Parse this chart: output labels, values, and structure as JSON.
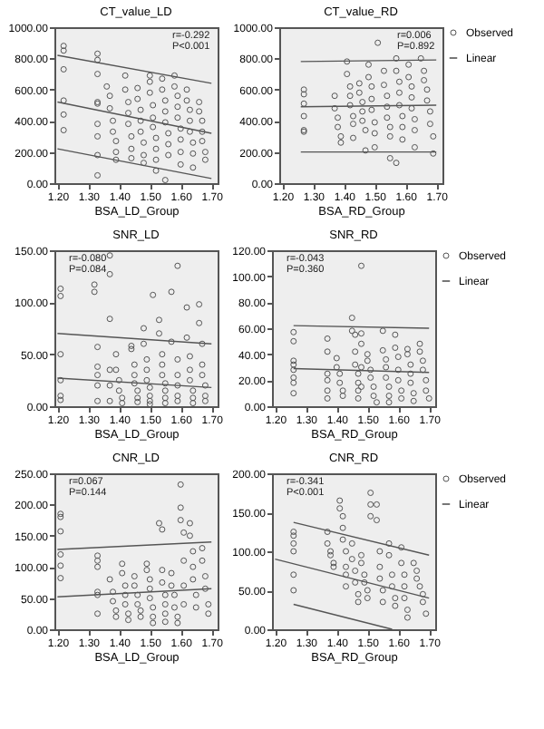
{
  "chart_data": [
    {
      "type": "scatter",
      "title": "CT_value_LD",
      "xlabel": "BSA_LD_Group",
      "legend": false,
      "annotations": [
        "r=-0.292",
        "P<0.001"
      ],
      "xlim": [
        1.19,
        1.72
      ],
      "xticks": [
        {
          "value": 1.2,
          "label": "1.20"
        },
        {
          "value": 1.3,
          "label": "1.30"
        },
        {
          "value": 1.4,
          "label": "1.40"
        },
        {
          "value": 1.5,
          "label": "1.50"
        },
        {
          "value": 1.6,
          "label": "1.60"
        },
        {
          "value": 1.7,
          "label": "1.70"
        }
      ],
      "ylim": [
        0,
        1000
      ],
      "yticks": [
        {
          "value": 0,
          "label": "0.00"
        },
        {
          "value": 200,
          "label": "200.00"
        },
        {
          "value": 400,
          "label": "400.00"
        },
        {
          "value": 600,
          "label": "600.00"
        },
        {
          "value": 800,
          "label": "800.00"
        },
        {
          "value": 1000,
          "label": "1000.00"
        }
      ],
      "series": [
        {
          "marker": "circle",
          "color": "#555555",
          "x": [
            1.22,
            1.22,
            1.22,
            1.22,
            1.22,
            1.22,
            1.33,
            1.33,
            1.33,
            1.33,
            1.33,
            1.33,
            1.33,
            1.33,
            1.33,
            1.36,
            1.37,
            1.37,
            1.38,
            1.38,
            1.39,
            1.39,
            1.39,
            1.42,
            1.42,
            1.43,
            1.43,
            1.43,
            1.44,
            1.44,
            1.44,
            1.46,
            1.46,
            1.47,
            1.47,
            1.47,
            1.48,
            1.48,
            1.48,
            1.5,
            1.5,
            1.5,
            1.51,
            1.51,
            1.51,
            1.52,
            1.52,
            1.52,
            1.52,
            1.54,
            1.54,
            1.55,
            1.55,
            1.55,
            1.56,
            1.56,
            1.56,
            1.55,
            1.58,
            1.58,
            1.59,
            1.59,
            1.59,
            1.6,
            1.6,
            1.6,
            1.6,
            1.62,
            1.62,
            1.63,
            1.63,
            1.63,
            1.64,
            1.64,
            1.64,
            1.66,
            1.66,
            1.67,
            1.67,
            1.67,
            1.68,
            1.68
          ],
          "values": [
            880,
            850,
            730,
            530,
            440,
            340,
            830,
            790,
            700,
            520,
            510,
            380,
            300,
            180,
            50,
            620,
            560,
            480,
            400,
            330,
            270,
            200,
            150,
            690,
            600,
            520,
            450,
            380,
            300,
            220,
            160,
            610,
            540,
            470,
            400,
            330,
            260,
            180,
            130,
            690,
            650,
            580,
            500,
            420,
            360,
            290,
            220,
            150,
            80,
            670,
            600,
            530,
            460,
            390,
            320,
            250,
            180,
            20,
            690,
            620,
            560,
            490,
            420,
            350,
            280,
            200,
            120,
            600,
            530,
            470,
            400,
            330,
            260,
            190,
            100,
            520,
            460,
            400,
            330,
            270,
            200,
            150
          ]
        },
        {
          "type": "line",
          "color": "#555555",
          "x": [
            1.2,
            1.7
          ],
          "values": [
            520,
            320
          ]
        },
        {
          "type": "line",
          "color": "#555555",
          "x": [
            1.2,
            1.7
          ],
          "values": [
            820,
            640
          ]
        },
        {
          "type": "line",
          "color": "#555555",
          "x": [
            1.2,
            1.7
          ],
          "values": [
            220,
            30
          ]
        }
      ]
    },
    {
      "type": "scatter",
      "title": "CT_value_RD",
      "xlabel": "BSA_RD_Group",
      "legend": "top right",
      "annotations": [
        "r=0.006",
        "P=0.892"
      ],
      "xlim": [
        1.19,
        1.72
      ],
      "xticks": [
        {
          "value": 1.2,
          "label": "1.20"
        },
        {
          "value": 1.3,
          "label": "1.30"
        },
        {
          "value": 1.4,
          "label": "1.40"
        },
        {
          "value": 1.5,
          "label": "1.50"
        },
        {
          "value": 1.6,
          "label": "1.60"
        },
        {
          "value": 1.7,
          "label": "1.70"
        }
      ],
      "ylim": [
        0,
        1000
      ],
      "yticks": [
        {
          "value": 0,
          "label": "0.00"
        },
        {
          "value": 200,
          "label": "200.00"
        },
        {
          "value": 400,
          "label": "400.00"
        },
        {
          "value": 600,
          "label": "600.00"
        },
        {
          "value": 800,
          "label": "800.00"
        },
        {
          "value": 1000,
          "label": "1000.00"
        }
      ],
      "series": [
        {
          "marker": "circle",
          "name": "Observed",
          "color": "#555555",
          "x": [
            1.27,
            1.27,
            1.27,
            1.27,
            1.27,
            1.27,
            1.37,
            1.37,
            1.38,
            1.38,
            1.39,
            1.39,
            1.41,
            1.41,
            1.42,
            1.42,
            1.42,
            1.43,
            1.43,
            1.43,
            1.45,
            1.45,
            1.46,
            1.46,
            1.46,
            1.47,
            1.47,
            1.48,
            1.48,
            1.49,
            1.49,
            1.49,
            1.5,
            1.5,
            1.5,
            1.51,
            1.53,
            1.53,
            1.54,
            1.54,
            1.54,
            1.55,
            1.55,
            1.55,
            1.57,
            1.57,
            1.58,
            1.58,
            1.58,
            1.59,
            1.59,
            1.59,
            1.57,
            1.61,
            1.61,
            1.62,
            1.62,
            1.62,
            1.63,
            1.63,
            1.63,
            1.65,
            1.66,
            1.66,
            1.67,
            1.67,
            1.68,
            1.68,
            1.69,
            1.69
          ],
          "values": [
            600,
            570,
            510,
            430,
            340,
            330,
            560,
            480,
            420,
            360,
            300,
            260,
            780,
            700,
            620,
            560,
            500,
            430,
            380,
            290,
            640,
            580,
            520,
            460,
            400,
            340,
            210,
            760,
            680,
            620,
            540,
            470,
            390,
            320,
            230,
            900,
            720,
            630,
            560,
            490,
            420,
            360,
            300,
            160,
            800,
            720,
            650,
            580,
            500,
            430,
            360,
            280,
            130,
            760,
            680,
            620,
            550,
            480,
            410,
            340,
            230,
            800,
            720,
            660,
            600,
            530,
            460,
            380,
            300,
            190
          ]
        },
        {
          "type": "line",
          "name": "Linear",
          "color": "#555555",
          "x": [
            1.26,
            1.7
          ],
          "values": [
            490,
            500
          ]
        },
        {
          "type": "line",
          "color": "#555555",
          "x": [
            1.26,
            1.7
          ],
          "values": [
            780,
            790
          ]
        },
        {
          "type": "line",
          "color": "#555555",
          "x": [
            1.26,
            1.7
          ],
          "values": [
            200,
            200
          ]
        }
      ]
    },
    {
      "type": "scatter",
      "title": "SNR_LD",
      "xlabel": "BSA_LD_Group",
      "legend": false,
      "annotations": [
        "r=-0.080",
        "P=0.084"
      ],
      "xlim": [
        1.19,
        1.72
      ],
      "xticks": [
        {
          "value": 1.2,
          "label": "1.20"
        },
        {
          "value": 1.3,
          "label": "1.30"
        },
        {
          "value": 1.4,
          "label": "1.40"
        },
        {
          "value": 1.5,
          "label": "1.50"
        },
        {
          "value": 1.6,
          "label": "1.60"
        },
        {
          "value": 1.7,
          "label": "1.70"
        }
      ],
      "ylim": [
        0,
        150
      ],
      "yticks": [
        {
          "value": 0,
          "label": "0.00"
        },
        {
          "value": 50,
          "label": "50.00"
        },
        {
          "value": 100,
          "label": "100.00"
        },
        {
          "value": 150,
          "label": "150.00"
        }
      ],
      "series": [
        {
          "marker": "circle",
          "color": "#555555",
          "x": [
            1.21,
            1.21,
            1.21,
            1.21,
            1.21,
            1.21,
            1.32,
            1.32,
            1.33,
            1.33,
            1.33,
            1.33,
            1.33,
            1.37,
            1.37,
            1.37,
            1.37,
            1.37,
            1.37,
            1.39,
            1.39,
            1.4,
            1.4,
            1.41,
            1.41,
            1.44,
            1.44,
            1.45,
            1.45,
            1.45,
            1.46,
            1.46,
            1.46,
            1.48,
            1.48,
            1.49,
            1.49,
            1.49,
            1.5,
            1.5,
            1.5,
            1.5,
            1.51,
            1.53,
            1.53,
            1.54,
            1.54,
            1.54,
            1.55,
            1.55,
            1.55,
            1.55,
            1.57,
            1.57,
            1.59,
            1.59,
            1.59,
            1.59,
            1.59,
            1.59,
            1.62,
            1.62,
            1.63,
            1.63,
            1.63,
            1.64,
            1.64,
            1.64,
            1.66,
            1.66,
            1.67,
            1.67,
            1.67,
            1.68,
            1.68,
            1.68
          ],
          "values": [
            113,
            106,
            50,
            25,
            10,
            6,
            117,
            110,
            57,
            38,
            30,
            20,
            5,
            145,
            127,
            84,
            35,
            20,
            5,
            50,
            35,
            25,
            15,
            8,
            3,
            58,
            55,
            40,
            30,
            22,
            15,
            8,
            4,
            75,
            60,
            45,
            35,
            25,
            18,
            10,
            5,
            2,
            107,
            70,
            83,
            50,
            40,
            30,
            22,
            15,
            8,
            3,
            110,
            62,
            135,
            45,
            30,
            20,
            10,
            5,
            95,
            66,
            48,
            35,
            25,
            15,
            8,
            3,
            98,
            80,
            60,
            40,
            30,
            20,
            10,
            5
          ]
        },
        {
          "type": "line",
          "color": "#555555",
          "x": [
            1.2,
            1.7
          ],
          "values": [
            27,
            18
          ]
        },
        {
          "type": "line",
          "color": "#555555",
          "x": [
            1.2,
            1.7
          ],
          "values": [
            70,
            60
          ]
        }
      ]
    },
    {
      "type": "scatter",
      "title": "SNR_RD",
      "xlabel": "BSA_RD_Group",
      "legend": "top right",
      "annotations": [
        "r=-0.043",
        "P=0.360"
      ],
      "xlim": [
        1.19,
        1.72
      ],
      "xticks": [
        {
          "value": 1.2,
          "label": "1.20"
        },
        {
          "value": 1.3,
          "label": "1.30"
        },
        {
          "value": 1.4,
          "label": "1.40"
        },
        {
          "value": 1.5,
          "label": "1.50"
        },
        {
          "value": 1.6,
          "label": "1.60"
        },
        {
          "value": 1.7,
          "label": "1.70"
        }
      ],
      "ylim": [
        0,
        120
      ],
      "yticks": [
        {
          "value": 0,
          "label": "0.00"
        },
        {
          "value": 20,
          "label": "20.00"
        },
        {
          "value": 40,
          "label": "40.00"
        },
        {
          "value": 60,
          "label": "60.00"
        },
        {
          "value": 80,
          "label": "80.00"
        },
        {
          "value": 100,
          "label": "100.00"
        },
        {
          "value": 120,
          "label": "120.00"
        }
      ],
      "series": [
        {
          "marker": "circle",
          "name": "Observed",
          "color": "#555555",
          "x": [
            1.26,
            1.26,
            1.26,
            1.26,
            1.26,
            1.26,
            1.26,
            1.26,
            1.37,
            1.37,
            1.37,
            1.37,
            1.37,
            1.37,
            1.4,
            1.4,
            1.41,
            1.41,
            1.42,
            1.42,
            1.45,
            1.45,
            1.46,
            1.46,
            1.46,
            1.47,
            1.47,
            1.47,
            1.47,
            1.48,
            1.48,
            1.48,
            1.48,
            1.48,
            1.5,
            1.5,
            1.51,
            1.51,
            1.52,
            1.52,
            1.53,
            1.55,
            1.55,
            1.56,
            1.56,
            1.56,
            1.57,
            1.57,
            1.57,
            1.59,
            1.59,
            1.6,
            1.6,
            1.6,
            1.61,
            1.61,
            1.63,
            1.63,
            1.64,
            1.64,
            1.64,
            1.65,
            1.65,
            1.67,
            1.67,
            1.68,
            1.68,
            1.69,
            1.69,
            1.7
          ],
          "values": [
            57,
            50,
            35,
            32,
            28,
            22,
            18,
            10,
            52,
            42,
            25,
            20,
            12,
            6,
            37,
            30,
            25,
            18,
            12,
            8,
            68,
            58,
            55,
            42,
            32,
            25,
            18,
            12,
            6,
            56,
            48,
            30,
            15,
            108,
            40,
            35,
            28,
            22,
            15,
            8,
            3,
            58,
            43,
            36,
            30,
            22,
            15,
            8,
            3,
            55,
            45,
            38,
            28,
            20,
            12,
            6,
            44,
            40,
            32,
            25,
            18,
            10,
            4,
            48,
            42,
            35,
            28,
            20,
            12,
            6
          ]
        },
        {
          "type": "line",
          "name": "Linear",
          "color": "#555555",
          "x": [
            1.26,
            1.7
          ],
          "values": [
            29,
            26
          ]
        },
        {
          "type": "line",
          "color": "#555555",
          "x": [
            1.26,
            1.7
          ],
          "values": [
            62,
            60
          ]
        }
      ]
    },
    {
      "type": "scatter",
      "title": "CNR_LD",
      "xlabel": "BSA_LD_Group",
      "legend": false,
      "annotations": [
        "r=0.067",
        "P=0.144"
      ],
      "xlim": [
        1.19,
        1.72
      ],
      "xticks": [
        {
          "value": 1.2,
          "label": "1.20"
        },
        {
          "value": 1.3,
          "label": "1.30"
        },
        {
          "value": 1.4,
          "label": "1.40"
        },
        {
          "value": 1.5,
          "label": "1.50"
        },
        {
          "value": 1.6,
          "label": "1.60"
        },
        {
          "value": 1.7,
          "label": "1.70"
        }
      ],
      "ylim": [
        0,
        250
      ],
      "yticks": [
        {
          "value": 0,
          "label": "0.00"
        },
        {
          "value": 50,
          "label": "50.00"
        },
        {
          "value": 100,
          "label": "100.00"
        },
        {
          "value": 150,
          "label": "150.00"
        },
        {
          "value": 200,
          "label": "200.00"
        },
        {
          "value": 250,
          "label": "250.00"
        }
      ],
      "series": [
        {
          "marker": "circle",
          "color": "#555555",
          "x": [
            1.21,
            1.21,
            1.21,
            1.21,
            1.21,
            1.21,
            1.33,
            1.33,
            1.33,
            1.33,
            1.33,
            1.33,
            1.37,
            1.38,
            1.38,
            1.39,
            1.39,
            1.41,
            1.41,
            1.42,
            1.42,
            1.42,
            1.43,
            1.43,
            1.45,
            1.45,
            1.46,
            1.46,
            1.47,
            1.47,
            1.49,
            1.49,
            1.5,
            1.5,
            1.5,
            1.51,
            1.51,
            1.51,
            1.53,
            1.54,
            1.54,
            1.54,
            1.55,
            1.55,
            1.55,
            1.55,
            1.57,
            1.57,
            1.58,
            1.58,
            1.59,
            1.59,
            1.6,
            1.6,
            1.6,
            1.61,
            1.61,
            1.61,
            1.61,
            1.63,
            1.63,
            1.64,
            1.64,
            1.64,
            1.65,
            1.65,
            1.67,
            1.67,
            1.68,
            1.68,
            1.69,
            1.69
          ],
          "values": [
            185,
            180,
            157,
            120,
            102,
            82,
            118,
            110,
            100,
            60,
            55,
            25,
            80,
            60,
            45,
            30,
            20,
            105,
            90,
            70,
            55,
            40,
            25,
            15,
            85,
            70,
            55,
            40,
            30,
            20,
            105,
            95,
            80,
            65,
            50,
            35,
            20,
            10,
            170,
            160,
            95,
            75,
            55,
            40,
            25,
            12,
            90,
            70,
            55,
            35,
            20,
            10,
            232,
            195,
            175,
            155,
            110,
            70,
            40,
            170,
            150,
            125,
            100,
            80,
            55,
            35,
            130,
            110,
            85,
            65,
            40,
            25
          ]
        },
        {
          "type": "line",
          "color": "#555555",
          "x": [
            1.2,
            1.7
          ],
          "values": [
            52,
            65
          ]
        },
        {
          "type": "line",
          "color": "#555555",
          "x": [
            1.2,
            1.7
          ],
          "values": [
            128,
            140
          ]
        }
      ]
    },
    {
      "type": "scatter",
      "title": "CNR_RD",
      "xlabel": "BSA_RD_Group",
      "legend": "top right",
      "annotations": [
        "r=-0.341",
        "P<0.001"
      ],
      "xlim": [
        1.19,
        1.72
      ],
      "xticks": [
        {
          "value": 1.2,
          "label": "1.20"
        },
        {
          "value": 1.3,
          "label": "1.30"
        },
        {
          "value": 1.4,
          "label": "1.40"
        },
        {
          "value": 1.5,
          "label": "1.50"
        },
        {
          "value": 1.6,
          "label": "1.60"
        },
        {
          "value": 1.7,
          "label": "1.70"
        }
      ],
      "ylim": [
        0,
        200
      ],
      "yticks": [
        {
          "value": 0,
          "label": "0.00"
        },
        {
          "value": 50,
          "label": "50.00"
        },
        {
          "value": 100,
          "label": "100.00"
        },
        {
          "value": 150,
          "label": "150.00"
        },
        {
          "value": 200,
          "label": "200.00"
        }
      ],
      "series": [
        {
          "marker": "circle",
          "name": "Observed",
          "color": "#555555",
          "x": [
            1.26,
            1.26,
            1.26,
            1.26,
            1.26,
            1.26,
            1.37,
            1.37,
            1.38,
            1.38,
            1.39,
            1.39,
            1.41,
            1.41,
            1.42,
            1.42,
            1.42,
            1.43,
            1.43,
            1.43,
            1.43,
            1.45,
            1.45,
            1.46,
            1.46,
            1.47,
            1.47,
            1.48,
            1.48,
            1.49,
            1.49,
            1.5,
            1.5,
            1.51,
            1.51,
            1.51,
            1.53,
            1.53,
            1.54,
            1.54,
            1.54,
            1.55,
            1.55,
            1.57,
            1.57,
            1.58,
            1.58,
            1.59,
            1.59,
            1.61,
            1.61,
            1.62,
            1.62,
            1.62,
            1.63,
            1.63,
            1.65,
            1.66,
            1.66,
            1.67,
            1.68,
            1.68,
            1.69
          ],
          "values": [
            125,
            120,
            110,
            100,
            70,
            50,
            125,
            110,
            100,
            95,
            85,
            80,
            165,
            155,
            145,
            130,
            115,
            100,
            80,
            70,
            55,
            110,
            90,
            75,
            60,
            45,
            35,
            95,
            85,
            70,
            60,
            50,
            40,
            175,
            160,
            145,
            160,
            140,
            100,
            80,
            65,
            50,
            35,
            110,
            95,
            70,
            55,
            40,
            30,
            105,
            85,
            70,
            55,
            40,
            25,
            15,
            85,
            75,
            65,
            55,
            45,
            35,
            20
          ]
        },
        {
          "type": "line",
          "name": "Linear",
          "color": "#555555",
          "x": [
            1.2,
            1.7
          ],
          "values": [
            90,
            40
          ]
        },
        {
          "type": "line",
          "color": "#555555",
          "x": [
            1.26,
            1.7
          ],
          "values": [
            137,
            95
          ]
        },
        {
          "type": "line",
          "color": "#555555",
          "x": [
            1.26,
            1.58
          ],
          "values": [
            32,
            0
          ]
        }
      ]
    }
  ]
}
